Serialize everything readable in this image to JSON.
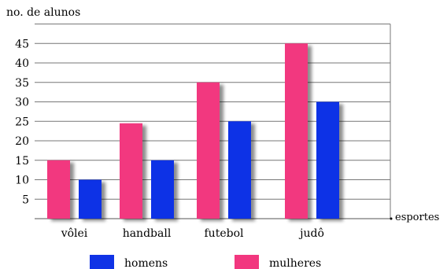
{
  "chart_data": {
    "type": "bar",
    "ylabel": "no. de alunos",
    "xlabel": "esportes",
    "categories": [
      "vôlei",
      "handball",
      "futebol",
      "judô"
    ],
    "yticks": [
      5,
      10,
      15,
      20,
      25,
      30,
      35,
      40,
      45
    ],
    "ylim": [
      0,
      50
    ],
    "grid": true,
    "legend_position": "bottom",
    "series": [
      {
        "name": "mulheres",
        "color": "#f2377f",
        "values": [
          15,
          24.5,
          35,
          45
        ]
      },
      {
        "name": "homens",
        "color": "#1033e6",
        "values": [
          10,
          15,
          25,
          30
        ]
      }
    ],
    "legend_order": [
      "homens",
      "mulheres"
    ]
  }
}
